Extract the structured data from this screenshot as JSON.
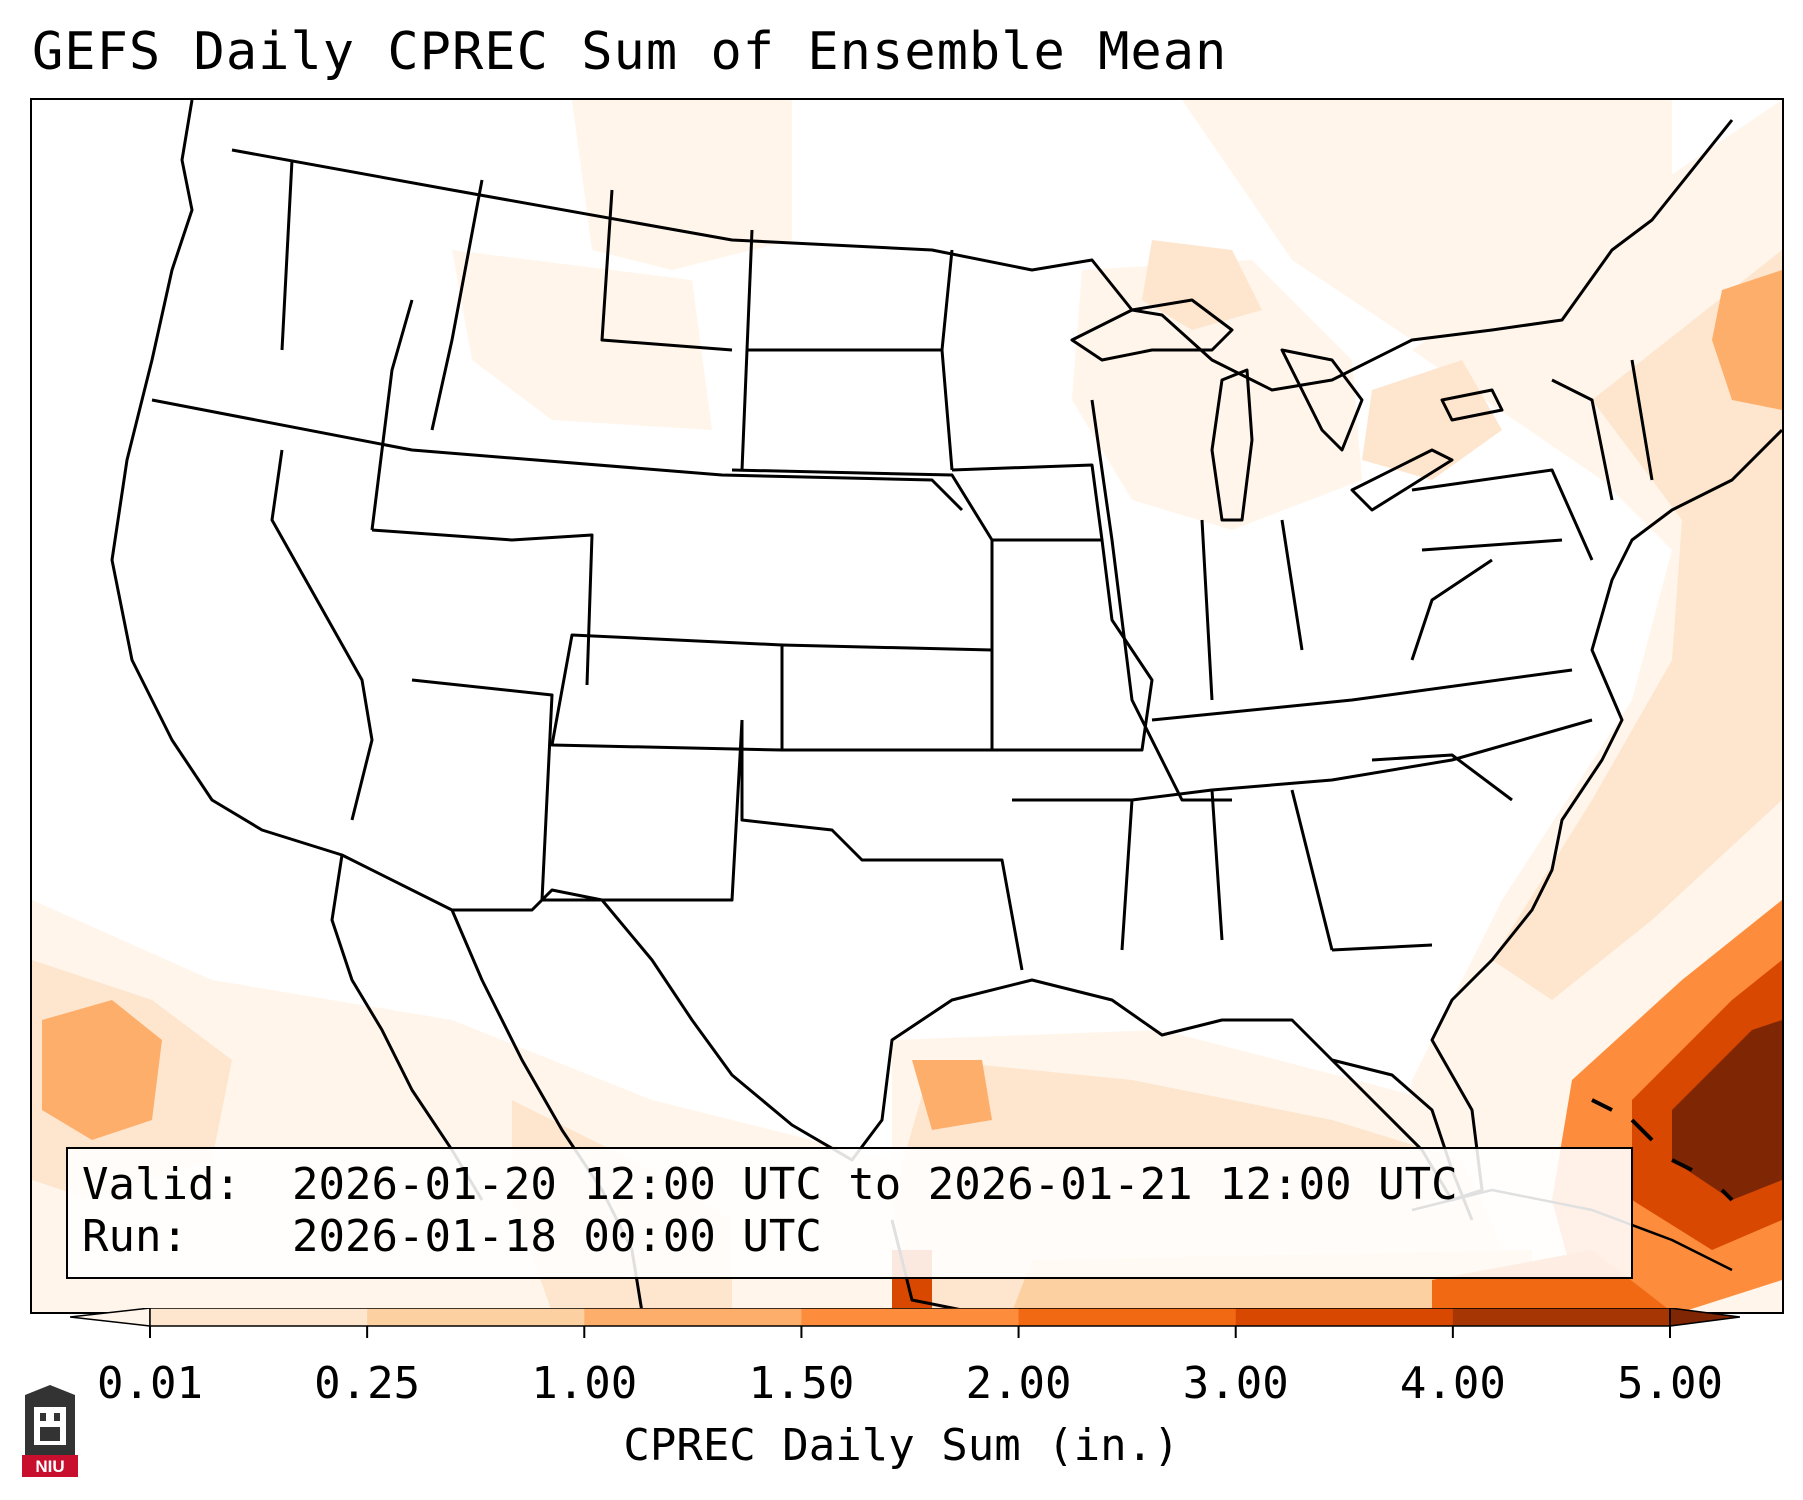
{
  "title": "GEFS Daily CPREC Sum of Ensemble Mean",
  "info": {
    "valid_label": "Valid:",
    "valid_value": "2026-01-20 12:00 UTC to 2026-01-21 12:00 UTC",
    "run_label": "Run:",
    "run_value": "2026-01-18 00:00 UTC"
  },
  "colorbar": {
    "label": "CPREC Daily Sum (in.)",
    "ticks": [
      "0.01",
      "0.25",
      "1.00",
      "1.50",
      "2.00",
      "3.00",
      "4.00",
      "5.00"
    ],
    "colors": [
      "#fff5eb",
      "#fee6ce",
      "#fdd0a2",
      "#fdae6b",
      "#fd8d3c",
      "#f16913",
      "#d94801",
      "#a63603",
      "#7f2704"
    ],
    "extend": "both"
  },
  "logo": {
    "text": "NIU",
    "color": "#c8102e"
  }
}
